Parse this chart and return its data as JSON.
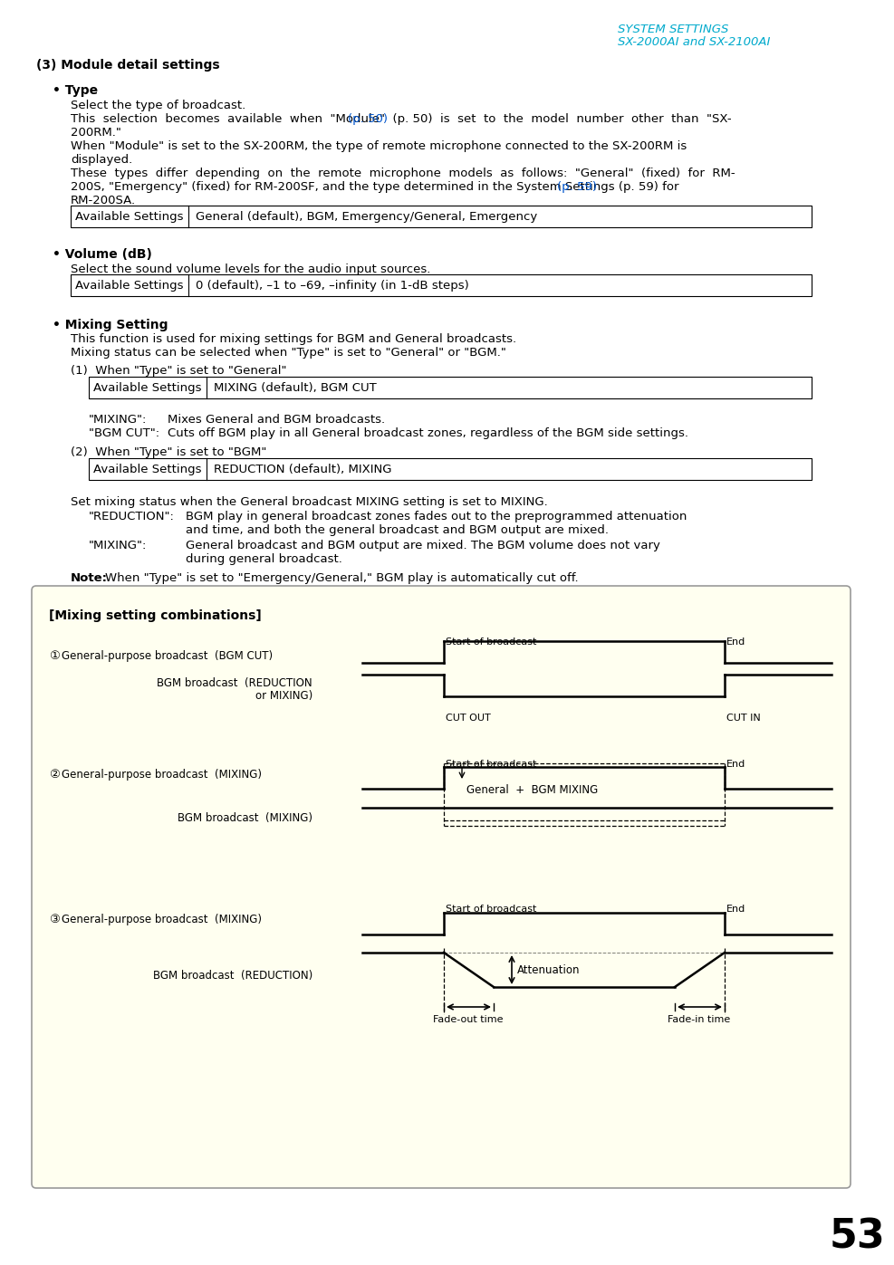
{
  "bg_color": "#ffffff",
  "header_text1": "SYSTEM SETTINGS",
  "header_text2": "SX-2000AI and SX-2100AI",
  "header_color": "#00aacc",
  "box_bg": "#fffff0",
  "box_title": "[Mixing setting combinations]",
  "page_number": "53",
  "link_color": "#0055cc"
}
